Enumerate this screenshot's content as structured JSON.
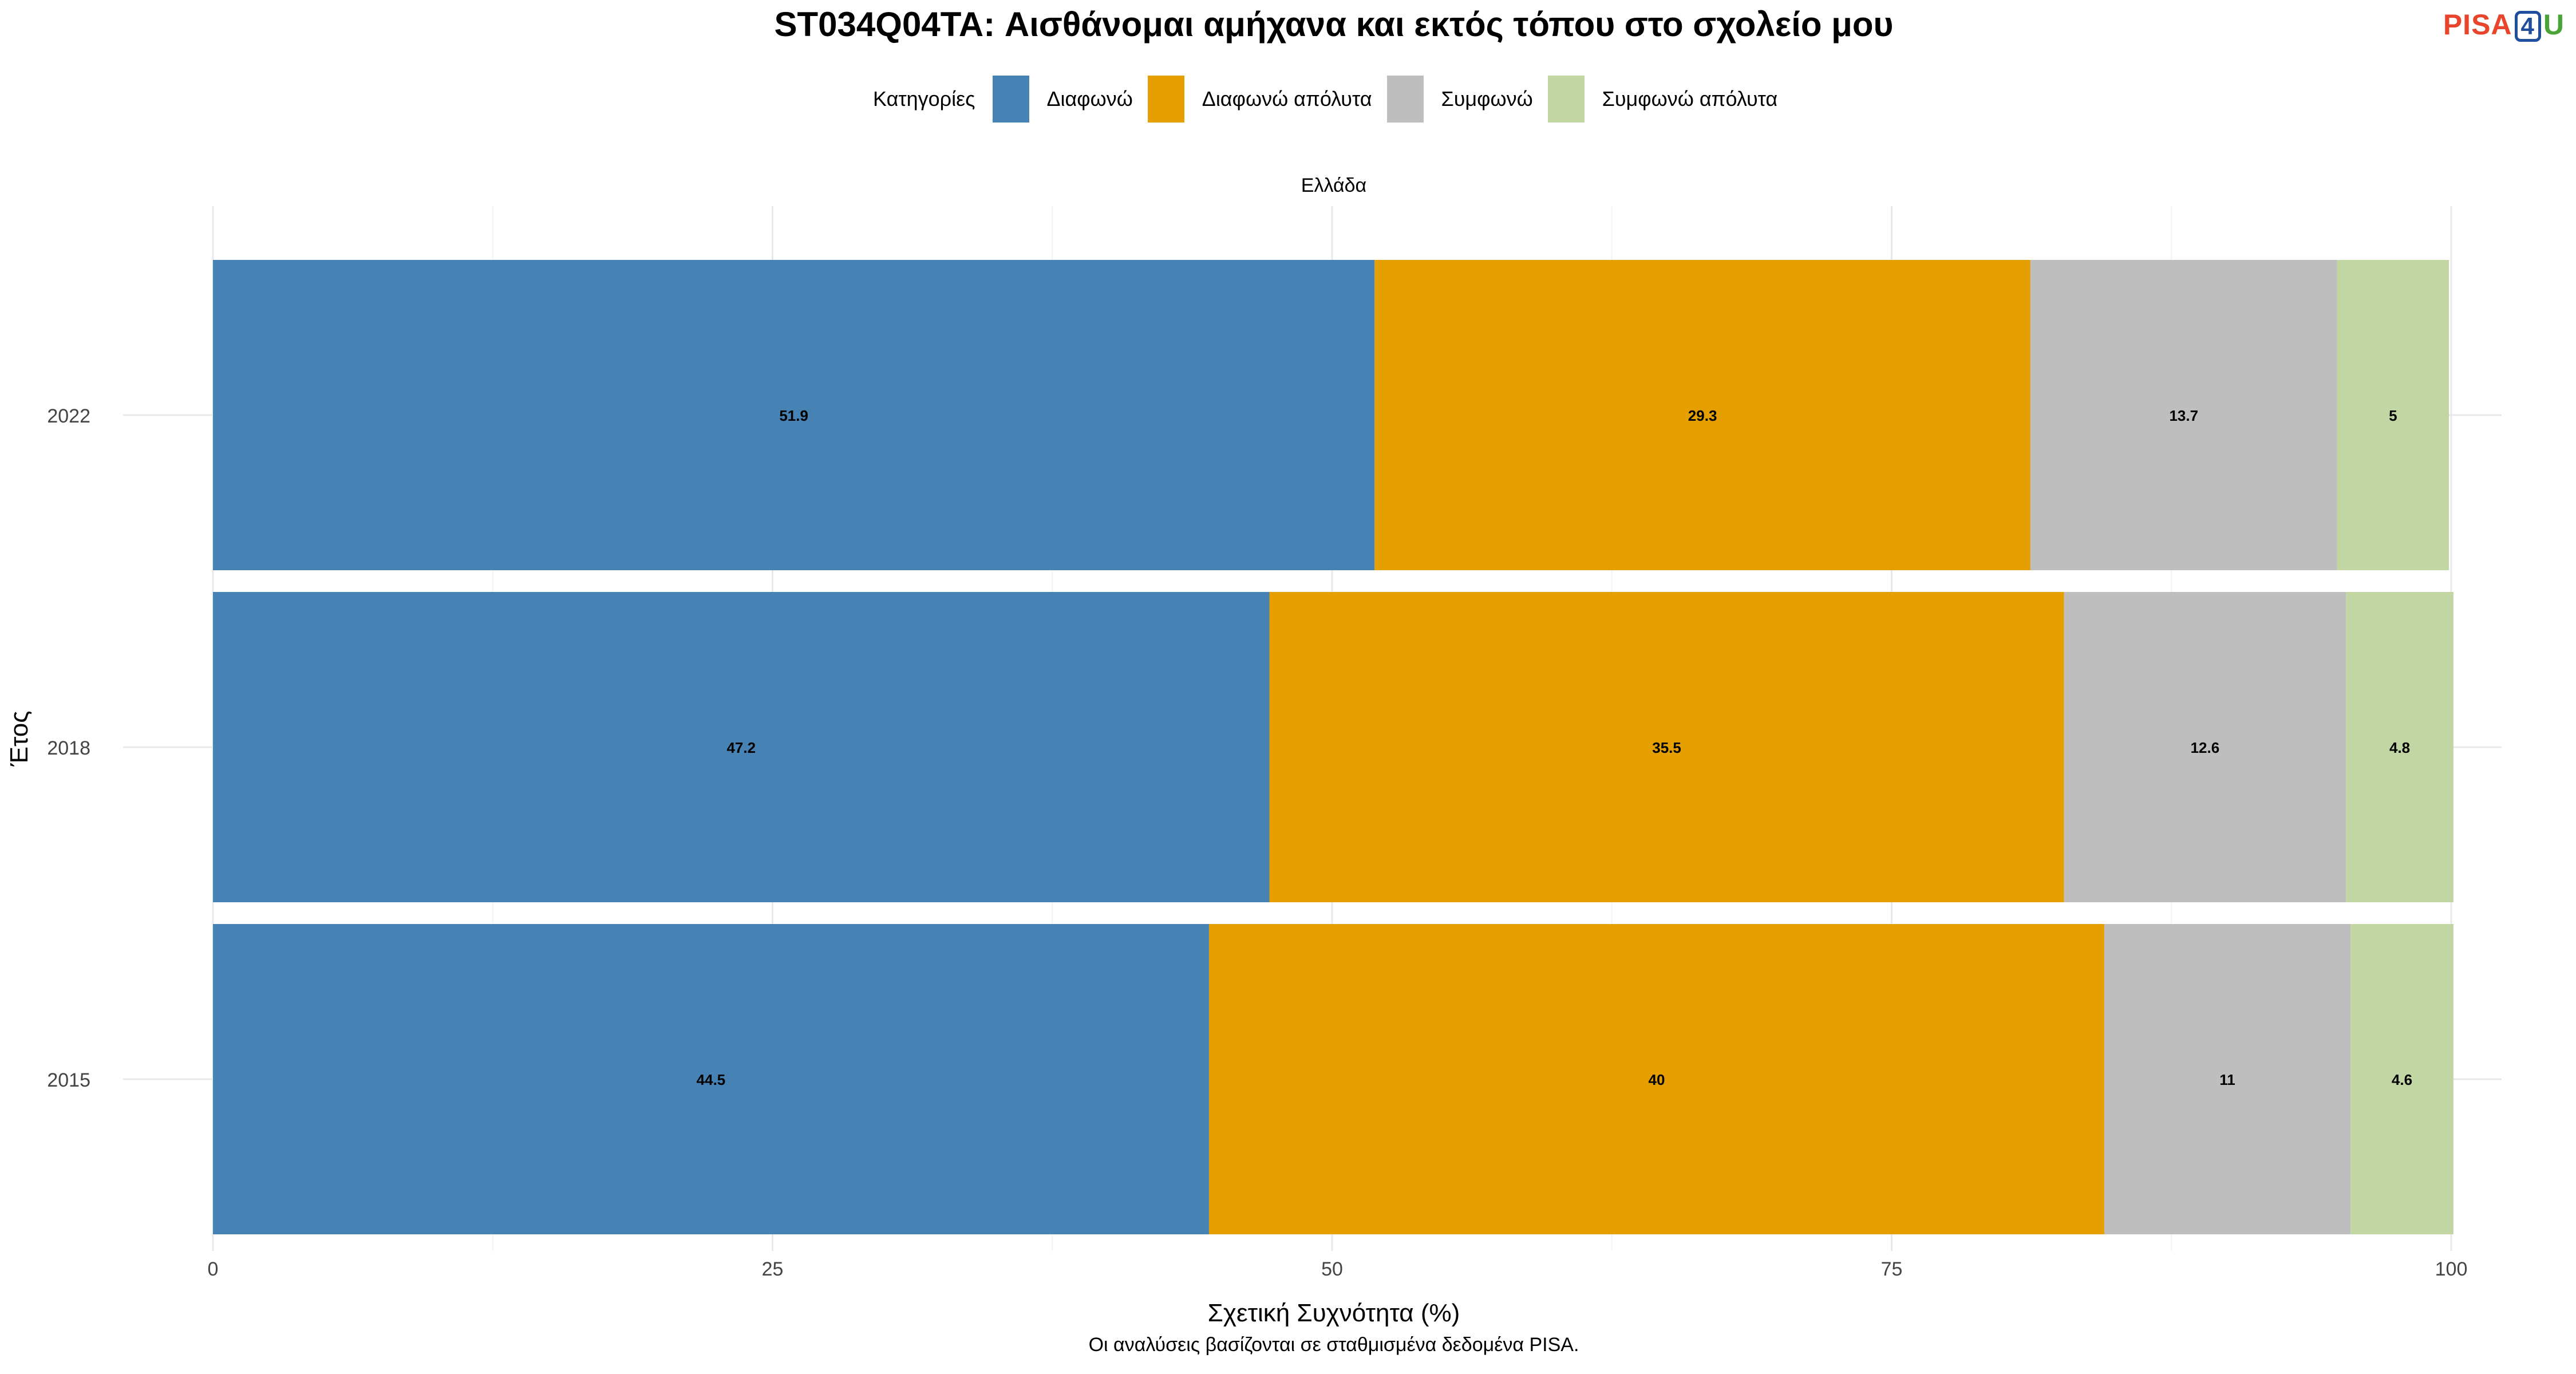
{
  "title": "ST034Q04TA: Αισθάνομαι αμήχανα και εκτός τόπου στο σχολείο μου",
  "logo": {
    "part1": "PISA",
    "part2": "4",
    "part3": "U"
  },
  "legend": {
    "title": "Κατηγορίες",
    "items": [
      {
        "label": "Διαφωνώ",
        "color": "#4682b4"
      },
      {
        "label": "Διαφωνώ απόλυτα",
        "color": "#e69f00"
      },
      {
        "label": "Συμφωνώ",
        "color": "#bebebe"
      },
      {
        "label": "Συμφωνώ απόλυτα",
        "color": "#c2d6a4"
      }
    ]
  },
  "caption": "Οι αναλύσεις βασίζονται σε σταθμισμένα δεδομένα PISA.",
  "chart_data": {
    "type": "bar",
    "orientation": "horizontal",
    "stacked": true,
    "facet": "Ελλάδα",
    "categories": [
      "2022",
      "2018",
      "2015"
    ],
    "series": [
      {
        "name": "Διαφωνώ",
        "values": [
          51.9,
          47.2,
          44.5
        ]
      },
      {
        "name": "Διαφωνώ απόλυτα",
        "values": [
          29.3,
          35.5,
          40
        ]
      },
      {
        "name": "Συμφωνώ",
        "values": [
          13.7,
          12.6,
          11
        ]
      },
      {
        "name": "Συμφωνώ απόλυτα",
        "values": [
          5,
          4.8,
          4.6
        ]
      }
    ],
    "xlabel": "Σχετική Συχνότητα (%)",
    "ylabel": "Έτος",
    "xlim": [
      0,
      100
    ],
    "xticks": [
      0,
      25,
      50,
      75,
      100
    ],
    "grid": true,
    "legend_position": "top"
  }
}
